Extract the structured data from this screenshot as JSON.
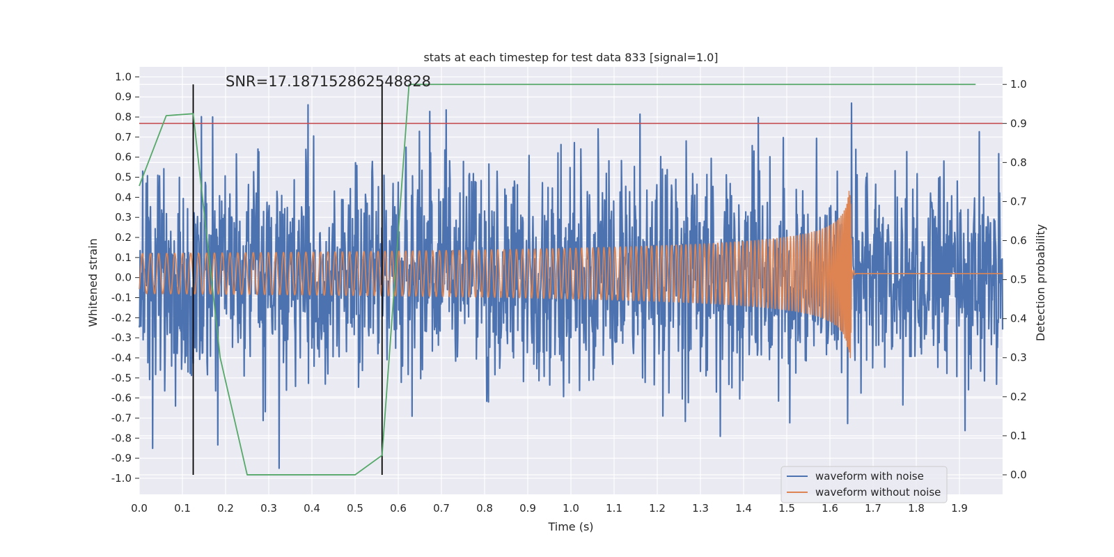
{
  "chart_data": {
    "type": "line",
    "title": "stats at each timestep for test data 833 [signal=1.0]",
    "annotation": "SNR=17.187152862548828",
    "xlabel": "Time (s)",
    "ylabel": "Whitened strain",
    "ylabel_right": "Detection probability",
    "xlim": [
      0.0,
      2.0
    ],
    "ylim": [
      -1.08,
      1.05
    ],
    "ylim_right": [
      -0.05,
      1.045
    ],
    "x_ticks": [
      "0.0",
      "0.1",
      "0.2",
      "0.3",
      "0.4",
      "0.5",
      "0.6",
      "0.7",
      "0.8",
      "0.9",
      "1.0",
      "1.1",
      "1.2",
      "1.3",
      "1.4",
      "1.5",
      "1.6",
      "1.7",
      "1.8",
      "1.9"
    ],
    "y_ticks": [
      "1.0",
      "0.9",
      "0.8",
      "0.7",
      "0.6",
      "0.5",
      "0.4",
      "0.3",
      "0.2",
      "0.1",
      "0.0",
      "-0.1",
      "-0.2",
      "-0.3",
      "-0.4",
      "-0.5",
      "-0.6",
      "-0.7",
      "-0.8",
      "-0.9",
      "-1.0"
    ],
    "y_ticks_right": [
      "1.0",
      "0.9",
      "0.8",
      "0.7",
      "0.6",
      "0.5",
      "0.4",
      "0.3",
      "0.2",
      "0.1",
      "0.0"
    ],
    "threshold": 0.9,
    "vertical_markers_s": [
      0.125,
      0.5625
    ],
    "detection_probability": {
      "x": [
        0.0,
        0.0625,
        0.125,
        0.1875,
        0.25,
        0.3125,
        0.375,
        0.4375,
        0.5,
        0.5625,
        0.625,
        0.6875,
        0.75,
        1.0,
        1.25,
        1.5,
        1.75,
        1.9375
      ],
      "values": [
        0.74,
        0.92,
        0.925,
        0.3,
        0.0,
        0.0,
        0.0,
        0.0,
        0.0,
        0.05,
        1.0,
        1.0,
        1.0,
        1.0,
        1.0,
        1.0,
        1.0,
        1.0
      ]
    },
    "series": [
      {
        "name": "waveform with noise",
        "color": "#4c72b0",
        "amplitude_envelope": 0.95
      },
      {
        "name": "waveform without noise",
        "color": "#dd8452",
        "merger_time_s": 1.65,
        "peak_amplitude": 0.42
      }
    ],
    "colors": {
      "probability": "#55a868",
      "threshold": "#c44e52",
      "marker": "#000000"
    }
  }
}
